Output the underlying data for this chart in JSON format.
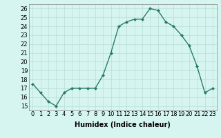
{
  "x": [
    0,
    1,
    2,
    3,
    4,
    5,
    6,
    7,
    8,
    9,
    10,
    11,
    12,
    13,
    14,
    15,
    16,
    17,
    18,
    19,
    20,
    21,
    22,
    23
  ],
  "y": [
    17.5,
    16.5,
    15.5,
    15.0,
    16.5,
    17.0,
    17.0,
    17.0,
    17.0,
    18.5,
    21.0,
    24.0,
    24.5,
    24.8,
    24.8,
    26.0,
    25.8,
    24.5,
    24.0,
    23.0,
    21.8,
    19.5,
    16.5,
    17.0
  ],
  "line_color": "#2a7a6a",
  "marker": "D",
  "markersize": 2.0,
  "linewidth": 1.0,
  "bg_color": "#d6f5f0",
  "grid_color": "#b8ddd8",
  "xlabel": "Humidex (Indice chaleur)",
  "xlabel_fontsize": 7,
  "tick_fontsize": 6,
  "ylim": [
    14.5,
    26.5
  ],
  "xlim": [
    -0.5,
    23.5
  ],
  "yticks": [
    15,
    16,
    17,
    18,
    19,
    20,
    21,
    22,
    23,
    24,
    25,
    26
  ],
  "xticks": [
    0,
    1,
    2,
    3,
    4,
    5,
    6,
    7,
    8,
    9,
    10,
    11,
    12,
    13,
    14,
    15,
    16,
    17,
    18,
    19,
    20,
    21,
    22,
    23
  ]
}
